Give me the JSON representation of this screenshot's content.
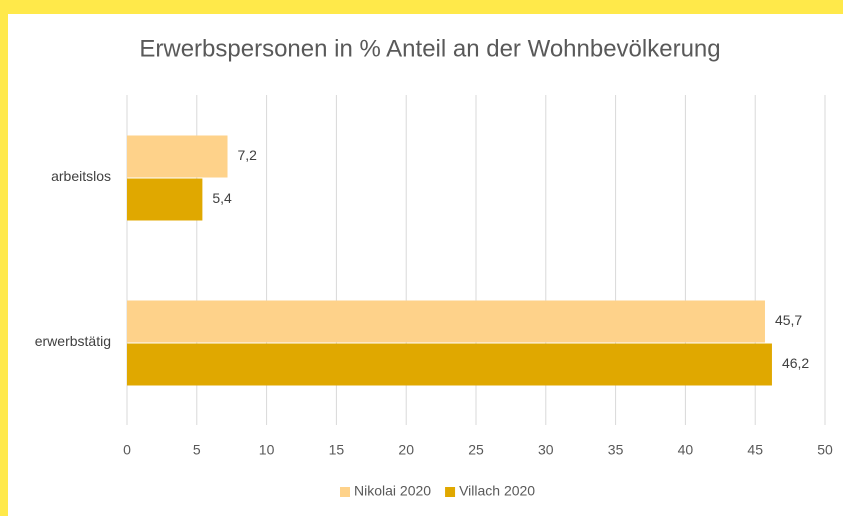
{
  "chart_data": {
    "type": "hbar",
    "title": "Erwerbspersonen in % Anteil an der Wohnbevölkerung",
    "categories": [
      "arbeitslos",
      "erwerbstätig"
    ],
    "series": [
      {
        "name": "Nikolai 2020",
        "color": "#fed28a",
        "values": [
          7.2,
          45.7
        ],
        "value_labels": [
          "7,2",
          "45,7"
        ]
      },
      {
        "name": "Villach 2020",
        "color": "#e0a800",
        "values": [
          5.4,
          46.2
        ],
        "value_labels": [
          "5,4",
          "46,2"
        ]
      }
    ],
    "xlim": [
      0,
      50
    ],
    "xticks": [
      0,
      5,
      10,
      15,
      20,
      25,
      30,
      35,
      40,
      45,
      50
    ],
    "grid": true,
    "legend": "bottom"
  }
}
